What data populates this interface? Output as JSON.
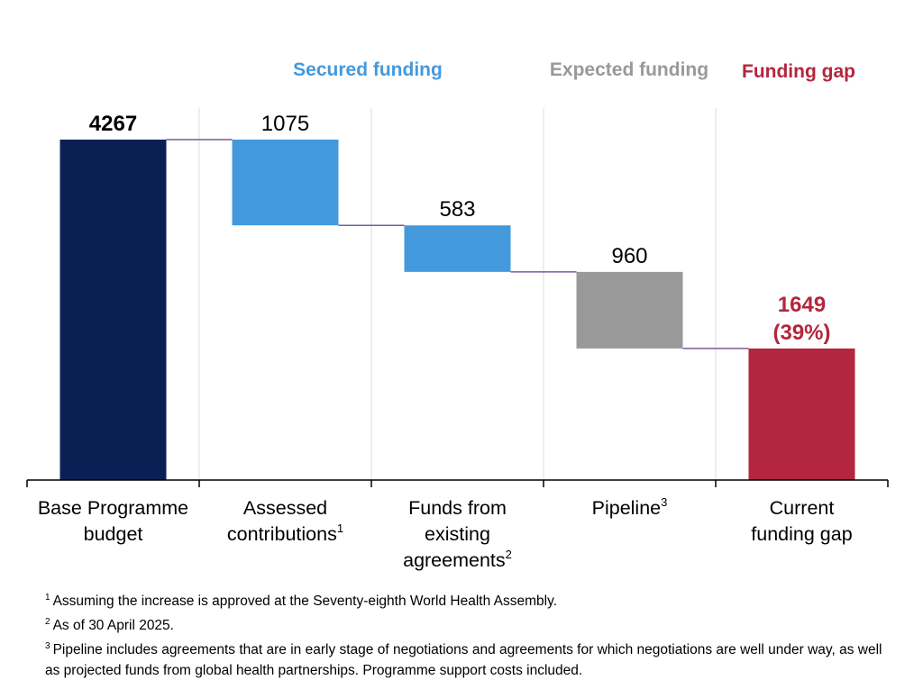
{
  "chart_data": {
    "type": "waterfall",
    "categories": [
      {
        "lines": [
          "Base Programme",
          "budget"
        ],
        "sup": ""
      },
      {
        "lines": [
          "Assessed",
          "contributions"
        ],
        "sup": "1"
      },
      {
        "lines": [
          "Funds from",
          "existing",
          "agreements"
        ],
        "sup": "2"
      },
      {
        "lines": [
          "Pipeline"
        ],
        "sup": "3"
      },
      {
        "lines": [
          "Current",
          "funding gap"
        ],
        "sup": ""
      }
    ],
    "values": [
      4267,
      1075,
      583,
      960,
      1649
    ],
    "kind": [
      "total",
      "decrease",
      "decrease",
      "decrease",
      "total"
    ],
    "value_labels": [
      [
        "4267"
      ],
      [
        "1075"
      ],
      [
        "583"
      ],
      [
        "960"
      ],
      [
        "1649",
        "(39%)"
      ]
    ],
    "legend": [
      {
        "label": "Secured funding",
        "color": "#4499dd"
      },
      {
        "label": "Expected funding",
        "color": "#999999"
      },
      {
        "label": "Funding gap",
        "color": "#b3263d"
      }
    ],
    "colors": [
      "#0c1f55",
      "#4499dd",
      "#4499dd",
      "#999999",
      "#b3263d"
    ],
    "label_colors": [
      "#000000",
      "#000000",
      "#000000",
      "#000000",
      "#b3263d"
    ],
    "connector_color": "#7a5c9a",
    "ylim": [
      0,
      4267
    ]
  },
  "footnotes": [
    {
      "num": "1",
      "text": "Assuming the increase is approved at the Seventy-eighth World Health Assembly."
    },
    {
      "num": "2",
      "text": "As of 30 April 2025."
    },
    {
      "num": "3",
      "text": "Pipeline includes agreements that are in early stage of negotiations and agreements for which negotiations are well under way, as well as projected funds from global health partnerships. Programme support costs included."
    }
  ]
}
